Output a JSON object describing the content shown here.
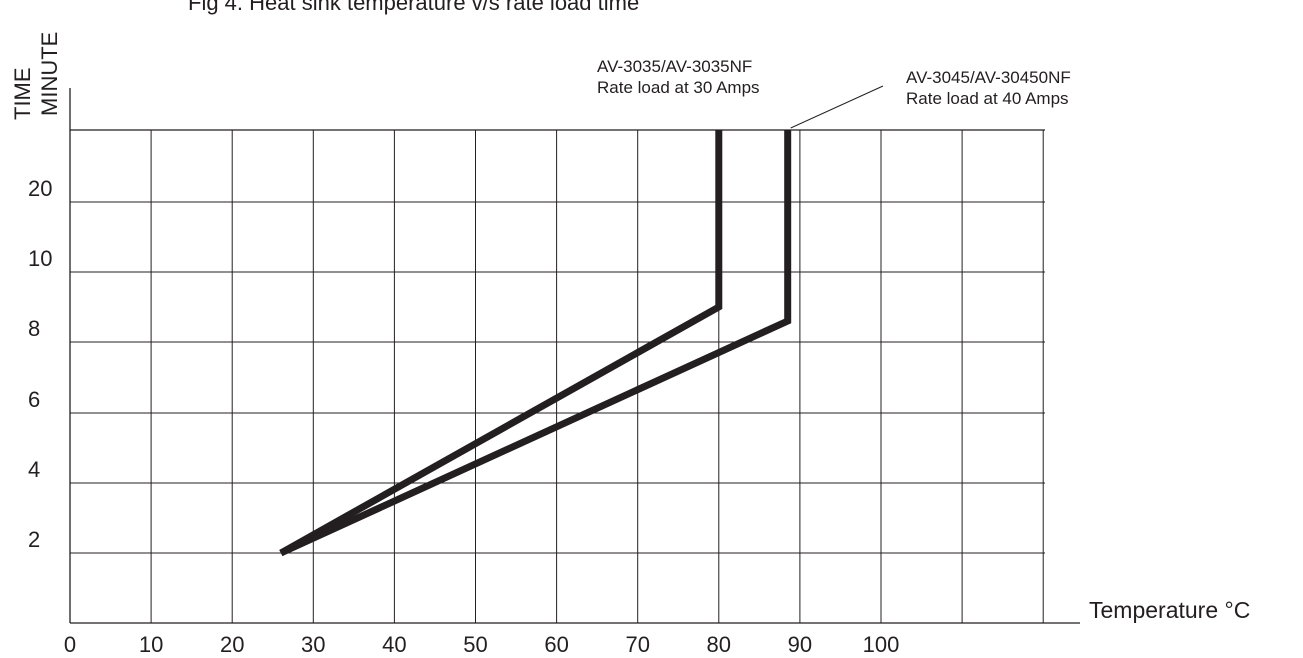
{
  "chart_data": {
    "type": "line",
    "title": "Fig 4. Heat sink temperature v/s rate load time",
    "xlabel": "Temperature  °C",
    "ylabel_top": "TIME",
    "ylabel_bottom": "MINUTE",
    "x_ticks": [
      "0",
      "10",
      "20",
      "30",
      "40",
      "50",
      "60",
      "70",
      "80",
      "90",
      "100"
    ],
    "y_ticks": [
      "2",
      "4",
      "6",
      "8",
      "10",
      "20"
    ],
    "grid": true,
    "series": [
      {
        "name": "AV-3035/AV-3035NF",
        "annotation": [
          "AV-3035/AV-3035NF",
          "Rate load at 30 Amps"
        ],
        "points": [
          [
            26,
            2
          ],
          [
            80,
            9
          ],
          [
            80,
            25
          ]
        ]
      },
      {
        "name": "AV-3045/AV-30450NF",
        "annotation": [
          "AV-3045/AV-30450NF",
          "Rate load at 40 Amps"
        ],
        "points": [
          [
            26,
            2
          ],
          [
            88.5,
            8.6
          ],
          [
            88.5,
            25
          ]
        ]
      }
    ],
    "line_color": "#231f20"
  }
}
